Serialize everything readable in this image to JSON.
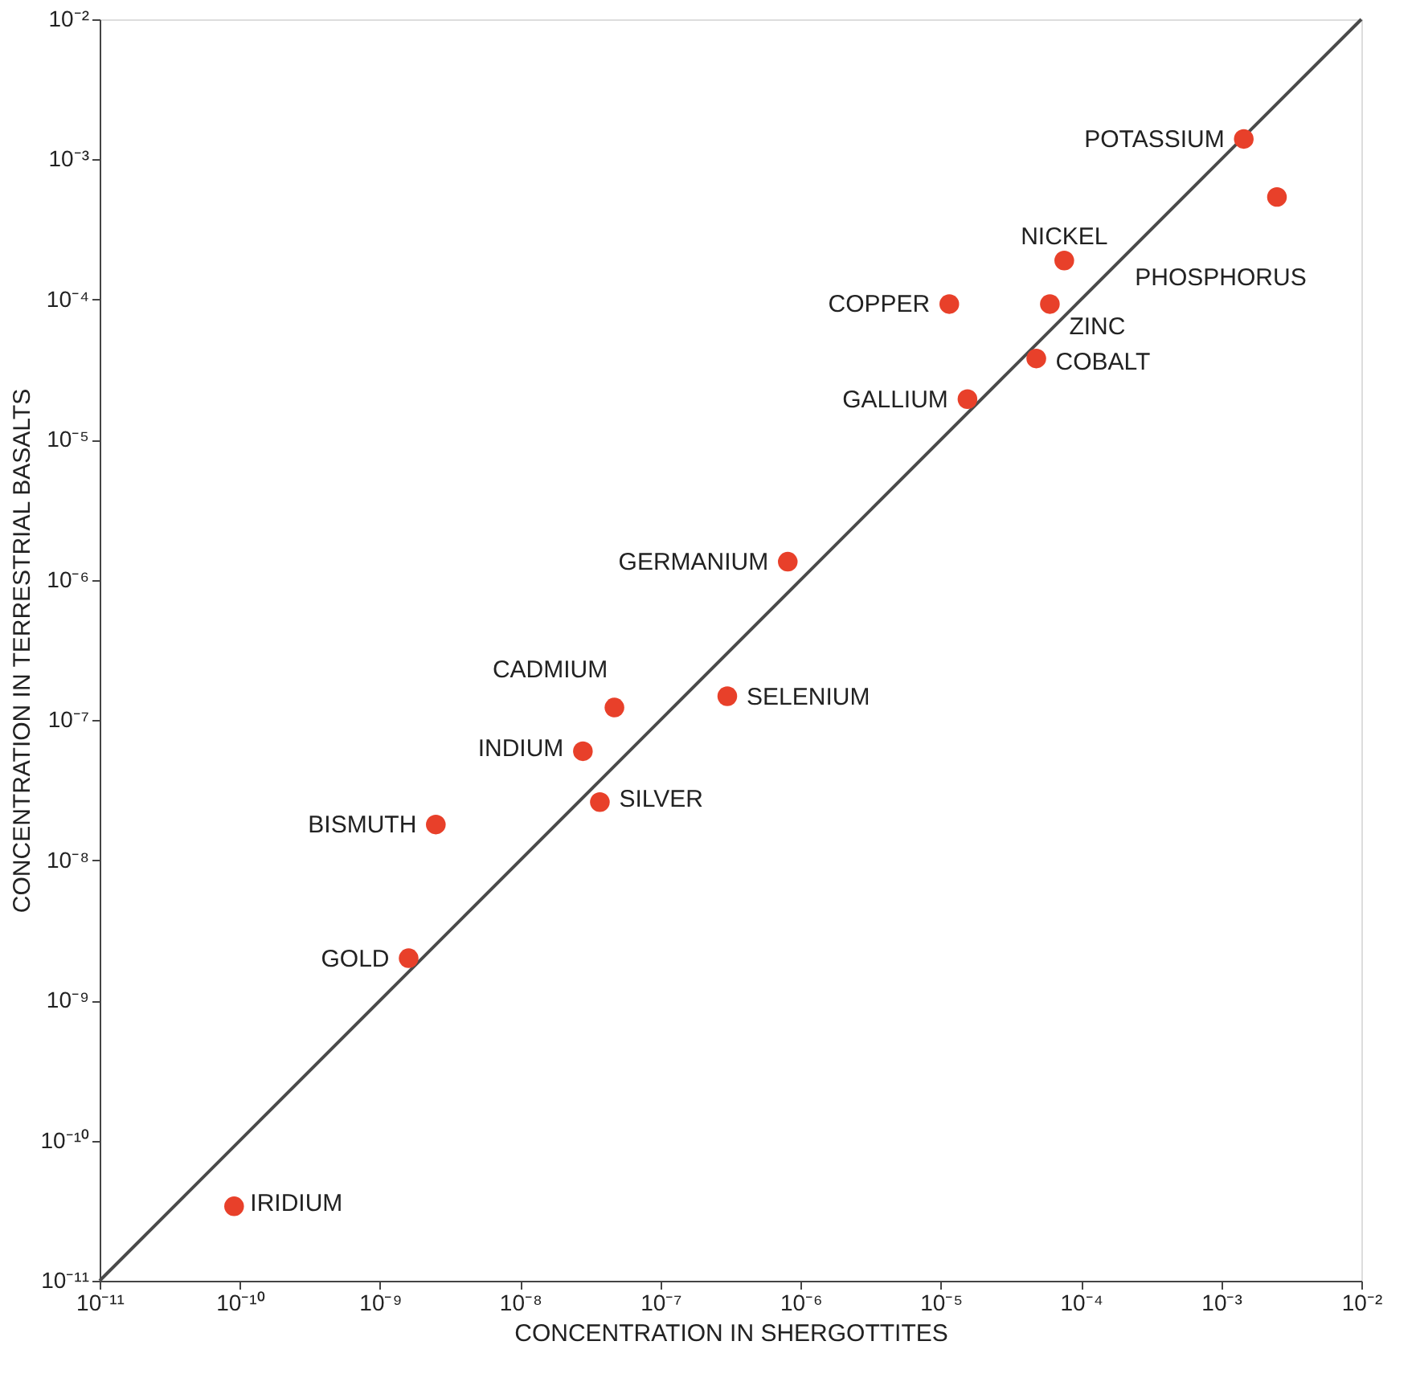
{
  "chart_data": {
    "type": "scatter",
    "xlabel": "CONCENTRATION IN SHERGOTTITES",
    "ylabel": "CONCENTRATION IN TERRESTRIAL BASALTS",
    "log": "xy",
    "grid": false,
    "marker": "circle",
    "xlim": [
      1e-11,
      0.01
    ],
    "ylim": [
      1e-11,
      0.01
    ],
    "xticks": [
      {
        "value": 1e-11,
        "label": "10⁻¹¹"
      },
      {
        "value": 1e-10,
        "label": "10⁻¹⁰"
      },
      {
        "value": 1e-09,
        "label": "10⁻⁹"
      },
      {
        "value": 1e-08,
        "label": "10⁻⁸"
      },
      {
        "value": 1e-07,
        "label": "10⁻⁷"
      },
      {
        "value": 1e-06,
        "label": "10⁻⁶"
      },
      {
        "value": 1e-05,
        "label": "10⁻⁵"
      },
      {
        "value": 0.0001,
        "label": "10⁻⁴"
      },
      {
        "value": 0.001,
        "label": "10⁻³"
      },
      {
        "value": 0.01,
        "label": "10⁻²"
      }
    ],
    "yticks": [
      {
        "value": 1e-11,
        "label": "10⁻¹¹"
      },
      {
        "value": 1e-10,
        "label": "10⁻¹⁰"
      },
      {
        "value": 1e-09,
        "label": "10⁻⁹"
      },
      {
        "value": 1e-08,
        "label": "10⁻⁸"
      },
      {
        "value": 1e-07,
        "label": "10⁻⁷"
      },
      {
        "value": 1e-06,
        "label": "10⁻⁶"
      },
      {
        "value": 1e-05,
        "label": "10⁻⁵"
      },
      {
        "value": 0.0001,
        "label": "10⁻⁴"
      },
      {
        "value": 0.001,
        "label": "10⁻³"
      },
      {
        "value": 0.01,
        "label": "10⁻²"
      }
    ],
    "series": [
      {
        "type": "line",
        "color": "#4a4a4a",
        "line_style": "solid",
        "marker": "none",
        "x": [
          1e-11,
          0.01
        ],
        "values": [
          1e-11,
          0.01
        ]
      },
      {
        "type": "scatter",
        "color": "#e8402a",
        "x": [
          0.00145,
          0.0025,
          7.6e-05,
          1.15e-05,
          6e-05,
          4.8e-05,
          1.55e-05,
          8.1e-07,
          4.7e-08,
          3e-07,
          2.8e-08,
          3.7e-08,
          2.5e-09,
          1.6e-09,
          9.1e-11
        ],
        "values": [
          0.0014,
          0.00054,
          0.00019,
          9.3e-05,
          9.3e-05,
          3.8e-05,
          1.95e-05,
          1.35e-06,
          1.23e-07,
          1.48e-07,
          6e-08,
          2.6e-08,
          1.8e-08,
          2e-09,
          3.4e-11
        ]
      }
    ],
    "annotations": [
      {
        "text": "POTASSIUM",
        "x": 0.00145,
        "y": 0.0014
      },
      {
        "text": "PHOSPHORUS",
        "x": 0.0025,
        "y": 0.00054
      },
      {
        "text": "NICKEL",
        "x": 7.6e-05,
        "y": 0.00019
      },
      {
        "text": "COPPER",
        "x": 1.15e-05,
        "y": 9.3e-05
      },
      {
        "text": "ZINC",
        "x": 6e-05,
        "y": 9.3e-05
      },
      {
        "text": "COBALT",
        "x": 4.8e-05,
        "y": 3.8e-05
      },
      {
        "text": "GALLIUM",
        "x": 1.55e-05,
        "y": 1.95e-05
      },
      {
        "text": "GERMANIUM",
        "x": 8.1e-07,
        "y": 1.35e-06
      },
      {
        "text": "CADMIUM",
        "x": 4.7e-08,
        "y": 1.23e-07
      },
      {
        "text": "SELENIUM",
        "x": 3e-07,
        "y": 1.48e-07
      },
      {
        "text": "INDIUM",
        "x": 2.8e-08,
        "y": 6e-08
      },
      {
        "text": "SILVER",
        "x": 3.7e-08,
        "y": 2.6e-08
      },
      {
        "text": "BISMUTH",
        "x": 2.5e-09,
        "y": 1.8e-08
      },
      {
        "text": "GOLD",
        "x": 1.6e-09,
        "y": 2e-09
      },
      {
        "text": "IRIDIUM",
        "x": 9.1e-11,
        "y": 3.4e-11
      }
    ]
  }
}
